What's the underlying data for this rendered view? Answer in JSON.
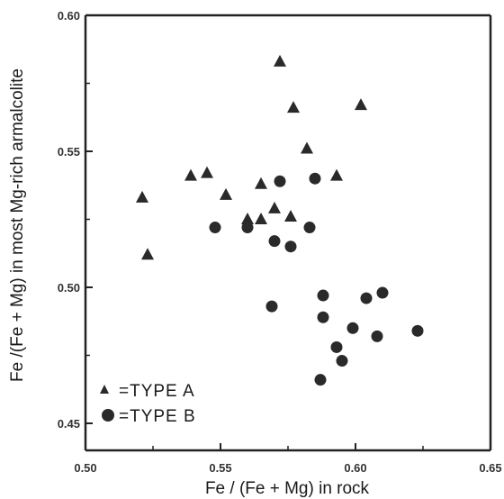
{
  "chart_data": {
    "type": "scatter",
    "xlabel": "Fe / (Fe + Mg) in rock",
    "ylabel": "Fe /(Fe + Mg) in most Mg-rich armalcolite",
    "xlim": [
      0.5,
      0.65
    ],
    "ylim": [
      0.44,
      0.6
    ],
    "x_ticks": [
      "0.50",
      "0.55",
      "0.60",
      "0.65"
    ],
    "y_ticks": [
      "0.60",
      "0.55",
      "0.50",
      "0.45"
    ],
    "grid": false,
    "legend_position": "bottom-left",
    "marker_color": "#2a2a2a",
    "series": [
      {
        "name": "=TYPE A",
        "marker": "triangle",
        "points": [
          [
            0.521,
            0.533
          ],
          [
            0.523,
            0.512
          ],
          [
            0.539,
            0.541
          ],
          [
            0.545,
            0.542
          ],
          [
            0.552,
            0.534
          ],
          [
            0.56,
            0.525
          ],
          [
            0.565,
            0.525
          ],
          [
            0.565,
            0.538
          ],
          [
            0.57,
            0.529
          ],
          [
            0.572,
            0.583
          ],
          [
            0.576,
            0.526
          ],
          [
            0.577,
            0.566
          ],
          [
            0.582,
            0.551
          ],
          [
            0.593,
            0.541
          ],
          [
            0.602,
            0.567
          ]
        ]
      },
      {
        "name": "=TYPE B",
        "marker": "circle",
        "points": [
          [
            0.548,
            0.522
          ],
          [
            0.56,
            0.522
          ],
          [
            0.569,
            0.493
          ],
          [
            0.57,
            0.517
          ],
          [
            0.572,
            0.539
          ],
          [
            0.576,
            0.515
          ],
          [
            0.583,
            0.522
          ],
          [
            0.585,
            0.54
          ],
          [
            0.587,
            0.466
          ],
          [
            0.588,
            0.497
          ],
          [
            0.588,
            0.489
          ],
          [
            0.593,
            0.478
          ],
          [
            0.595,
            0.473
          ],
          [
            0.599,
            0.485
          ],
          [
            0.604,
            0.496
          ],
          [
            0.608,
            0.482
          ],
          [
            0.61,
            0.498
          ],
          [
            0.623,
            0.484
          ]
        ]
      }
    ]
  }
}
